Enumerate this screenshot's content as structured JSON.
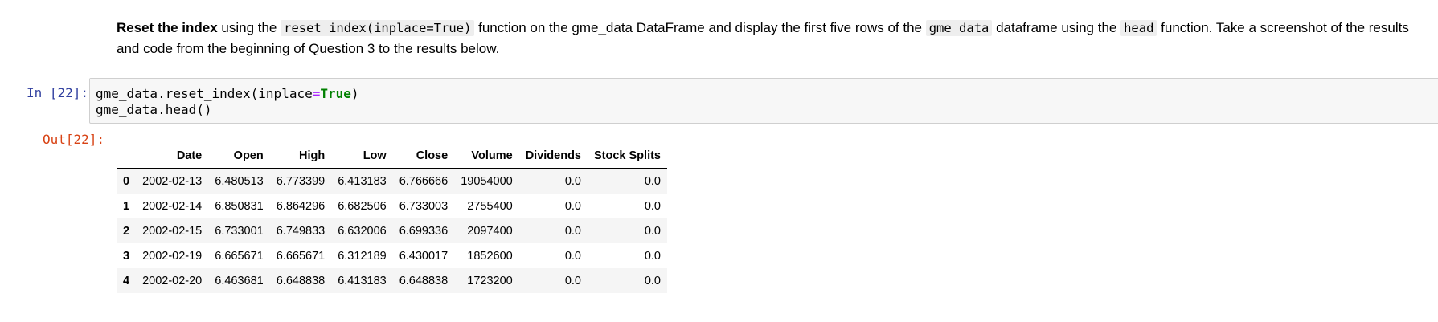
{
  "markdown": {
    "bold_intro": "Reset the index",
    "text1": " using the ",
    "code1": "reset_index(inplace=True)",
    "text2": " function on the gme_data DataFrame and display the first five rows of the ",
    "code2": "gme_data",
    "text3": " dataframe using the ",
    "code3": "head",
    "text4": " function. Take a screenshot of the results and code from the beginning of Question 3 to the results below."
  },
  "input_cell": {
    "prompt": "In [22]:",
    "line1_prefix": "gme_data.reset_index(inplace",
    "line1_op": "=",
    "line1_kw": "True",
    "line1_suffix": ")",
    "line2": "gme_data.head()"
  },
  "output_cell": {
    "prompt": "Out[22]:"
  },
  "dataframe": {
    "index_header": "",
    "columns": [
      "Date",
      "Open",
      "High",
      "Low",
      "Close",
      "Volume",
      "Dividends",
      "Stock Splits"
    ],
    "rows": [
      {
        "index": "0",
        "cells": [
          "2002-02-13",
          "6.480513",
          "6.773399",
          "6.413183",
          "6.766666",
          "19054000",
          "0.0",
          "0.0"
        ]
      },
      {
        "index": "1",
        "cells": [
          "2002-02-14",
          "6.850831",
          "6.864296",
          "6.682506",
          "6.733003",
          "2755400",
          "0.0",
          "0.0"
        ]
      },
      {
        "index": "2",
        "cells": [
          "2002-02-15",
          "6.733001",
          "6.749833",
          "6.632006",
          "6.699336",
          "2097400",
          "0.0",
          "0.0"
        ]
      },
      {
        "index": "3",
        "cells": [
          "2002-02-19",
          "6.665671",
          "6.665671",
          "6.312189",
          "6.430017",
          "1852600",
          "0.0",
          "0.0"
        ]
      },
      {
        "index": "4",
        "cells": [
          "2002-02-20",
          "6.463681",
          "6.648838",
          "6.413183",
          "6.648838",
          "1723200",
          "0.0",
          "0.0"
        ]
      }
    ]
  }
}
